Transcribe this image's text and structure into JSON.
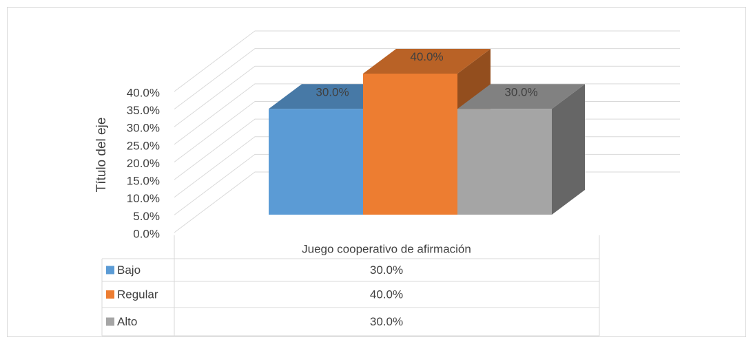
{
  "chart_data": {
    "type": "bar3d",
    "y_axis_label": "Título del eje",
    "categories": [
      "Juego cooperativo de afirmación"
    ],
    "series": [
      {
        "name": "Bajo",
        "color": "#5b9bd5",
        "values": [
          30
        ],
        "value_labels": [
          "30.0%"
        ]
      },
      {
        "name": "Regular",
        "color": "#ed7d31",
        "values": [
          40
        ],
        "value_labels": [
          "40.0%"
        ]
      },
      {
        "name": "Alto",
        "color": "#a5a5a5",
        "values": [
          30
        ],
        "value_labels": [
          "30.0%"
        ]
      }
    ],
    "ylim": [
      0,
      40
    ],
    "yticks": [
      {
        "value": 0,
        "label": "0.0%"
      },
      {
        "value": 5,
        "label": "5.0%"
      },
      {
        "value": 10,
        "label": "10.0%"
      },
      {
        "value": 15,
        "label": "15.0%"
      },
      {
        "value": 20,
        "label": "20.0%"
      },
      {
        "value": 25,
        "label": "25.0%"
      },
      {
        "value": 30,
        "label": "30.0%"
      },
      {
        "value": 35,
        "label": "35.0%"
      },
      {
        "value": 40,
        "label": "40.0%"
      }
    ],
    "grid": true,
    "data_table": true
  }
}
